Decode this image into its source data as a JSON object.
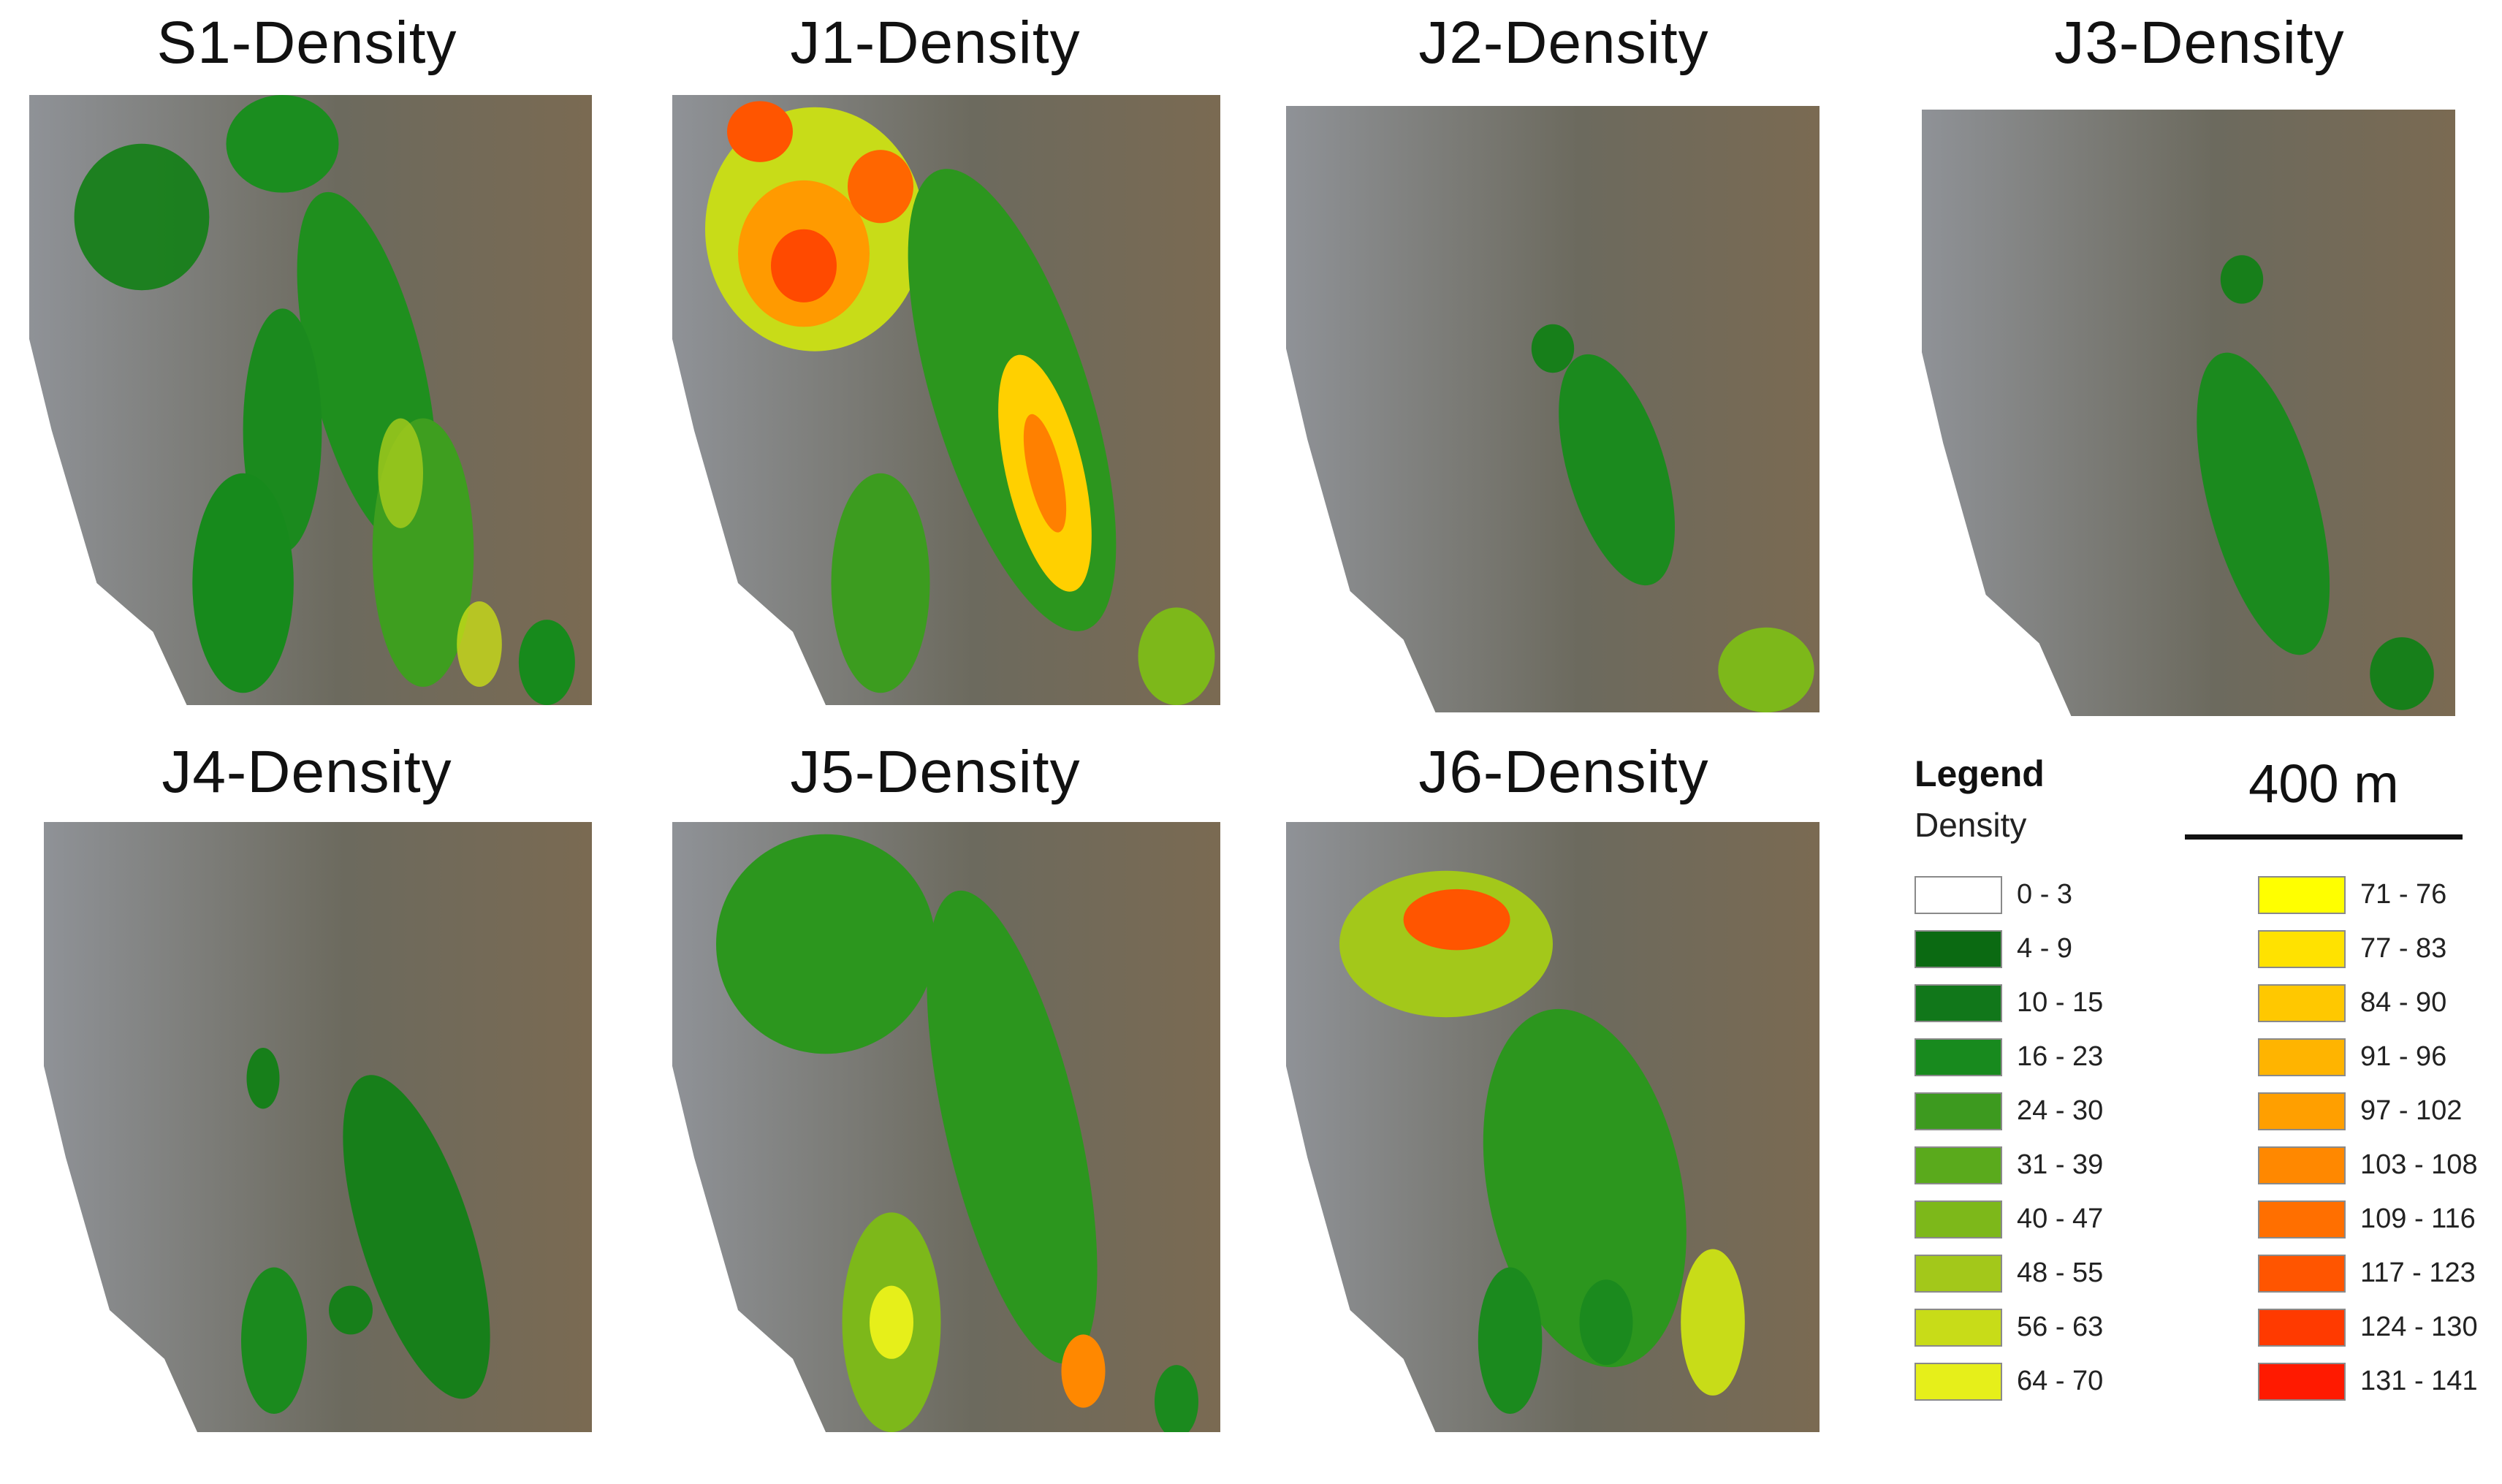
{
  "panels": [
    {
      "title": "S1-Density"
    },
    {
      "title": "J1-Density"
    },
    {
      "title": "J2-Density"
    },
    {
      "title": "J3-Density"
    },
    {
      "title": "J4-Density"
    },
    {
      "title": "J5-Density"
    },
    {
      "title": "J6-Density"
    }
  ],
  "legend": {
    "heading": "Legend",
    "subheading": "Density",
    "classes": [
      {
        "label": "0 - 3",
        "color": "#ffffff"
      },
      {
        "label": "4 - 9",
        "color": "#0b6a12"
      },
      {
        "label": "10 - 15",
        "color": "#11771a"
      },
      {
        "label": "16 - 23",
        "color": "#188a1e"
      },
      {
        "label": "24 - 30",
        "color": "#3d9a1f"
      },
      {
        "label": "31 - 39",
        "color": "#5aaa1c"
      },
      {
        "label": "40 - 47",
        "color": "#7db81a"
      },
      {
        "label": "48 - 55",
        "color": "#a3c81a"
      },
      {
        "label": "56 - 63",
        "color": "#c8dc18"
      },
      {
        "label": "64 - 70",
        "color": "#e6ef1a"
      },
      {
        "label": "71 - 76",
        "color": "#ffff00"
      },
      {
        "label": "77 - 83",
        "color": "#ffe200"
      },
      {
        "label": "84 - 90",
        "color": "#ffc800"
      },
      {
        "label": "91 - 96",
        "color": "#ffb400"
      },
      {
        "label": "97 - 102",
        "color": "#ff9f00"
      },
      {
        "label": "103 - 108",
        "color": "#ff8800"
      },
      {
        "label": "109 - 116",
        "color": "#ff6f00"
      },
      {
        "label": "117 - 123",
        "color": "#ff5500"
      },
      {
        "label": "124 - 130",
        "color": "#ff3a00"
      },
      {
        "label": "131 - 141",
        "color": "#ff1a00"
      }
    ]
  },
  "scale_bar": {
    "label": "400 m"
  }
}
